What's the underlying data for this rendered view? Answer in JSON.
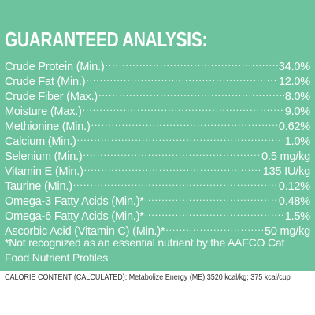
{
  "panel": {
    "background": "#6cc39d",
    "title": "GUARANTEED ANALYSIS:",
    "rows": [
      {
        "label": "Crude Protein (Min.)",
        "value": "34.0%"
      },
      {
        "label": "Crude Fat (Min.)",
        "value": "12.0%"
      },
      {
        "label": "Crude Fiber (Max.)",
        "value": "8.0%"
      },
      {
        "label": "Moisture (Max.)",
        "value": "9.0%"
      },
      {
        "label": "Methionine (Min.)",
        "value": "0.62%"
      },
      {
        "label": "Calcium (Min.)",
        "value": "1.0%"
      },
      {
        "label": "Selenium (Min.)",
        "value": "0.5 mg/kg"
      },
      {
        "label": "Vitamin E (Min.)",
        "value": "135 IU/kg"
      },
      {
        "label": "Taurine (Min.)",
        "value": "0.12%"
      },
      {
        "label": "Omega-3 Fatty Acids (Min.)*",
        "value": "0.48%"
      },
      {
        "label": "Omega-6 Fatty Acids (Min.)*",
        "value": "1.5%"
      },
      {
        "label": "Ascorbic Acid (Vitamin C) (Min.)*",
        "value": "50 mg/kg"
      }
    ],
    "footnote": "*Not recognized as an essential nutrient by the AAFCO Cat Food Nutrient Profiles"
  },
  "calorie_content": "CALORIE CONTENT (CALCULATED): Metabolize Energy (ME) 3520 kcal/kg; 375 kcal/cup"
}
